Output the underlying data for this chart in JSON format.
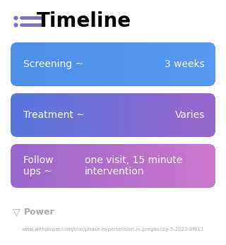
{
  "title": "Timeline",
  "background_color": "#ffffff",
  "title_color": "#000000",
  "title_fontsize": 20,
  "icon_color": "#7c6fcd",
  "rows": [
    {
      "label": "Screening ~",
      "value": "3 weeks",
      "gradient_left": "#4d8fe8",
      "gradient_right": "#5599f0",
      "text_color": "#ffffff",
      "multiline_label": false,
      "multiline_value": false
    },
    {
      "label": "Treatment ~",
      "value": "Varies",
      "gradient_left": "#5577dd",
      "gradient_right": "#9966cc",
      "text_color": "#ffffff",
      "multiline_label": false,
      "multiline_value": false
    },
    {
      "label": "Follow\nups ~",
      "value": "one visit, 15 minute\nintervention",
      "gradient_left": "#9966cc",
      "gradient_right": "#cc77cc",
      "text_color": "#ffffff",
      "multiline_label": true,
      "multiline_value": true
    }
  ],
  "footer_logo_color": "#aaaaaa",
  "footer_text": "www.withpower.com/trial/phase-hypertension-in-pregnancy-5-2022-8f811",
  "footer_fontsize": 5.0
}
